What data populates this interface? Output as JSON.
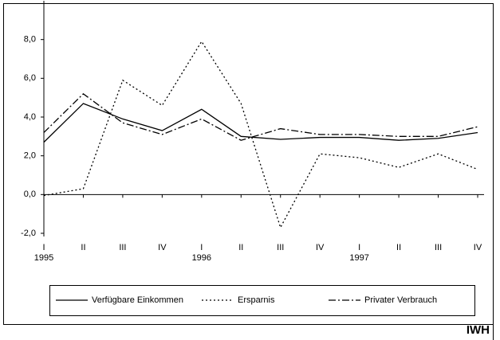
{
  "chart_data": {
    "type": "line",
    "categories": [
      "I",
      "II",
      "III",
      "IV",
      "I",
      "II",
      "III",
      "IV",
      "I",
      "II",
      "III",
      "IV"
    ],
    "year_labels": [
      "1995",
      null,
      null,
      null,
      "1996",
      null,
      null,
      null,
      "1997",
      null,
      null,
      null
    ],
    "series": [
      {
        "name": "Verfügbare Einkommen",
        "color": "#000000",
        "dash": "solid",
        "values": [
          2.7,
          4.7,
          3.9,
          3.3,
          4.4,
          3.0,
          2.85,
          2.95,
          2.95,
          2.8,
          2.9,
          3.2
        ]
      },
      {
        "name": "Ersparnis",
        "color": "#000000",
        "dash": "dotted",
        "values": [
          -0.05,
          0.3,
          5.9,
          4.6,
          7.9,
          4.7,
          -1.7,
          2.1,
          1.9,
          1.4,
          2.1,
          1.3
        ]
      },
      {
        "name": "Privater Verbrauch",
        "color": "#000000",
        "dash": "dashdot",
        "values": [
          3.2,
          5.2,
          3.7,
          3.1,
          3.9,
          2.8,
          3.4,
          3.1,
          3.1,
          3.0,
          3.0,
          3.5
        ]
      }
    ],
    "ylim": [
      -2,
      10
    ],
    "yticks": [
      {
        "value": -2,
        "label": "-2,0"
      },
      {
        "value": 0,
        "label": "0,0"
      },
      {
        "value": 2,
        "label": "2,0"
      },
      {
        "value": 4,
        "label": "4,0"
      },
      {
        "value": 6,
        "label": "6,0"
      },
      {
        "value": 8,
        "label": "8,0"
      }
    ],
    "grid": false,
    "legend": "bottom",
    "source": "IWH"
  }
}
